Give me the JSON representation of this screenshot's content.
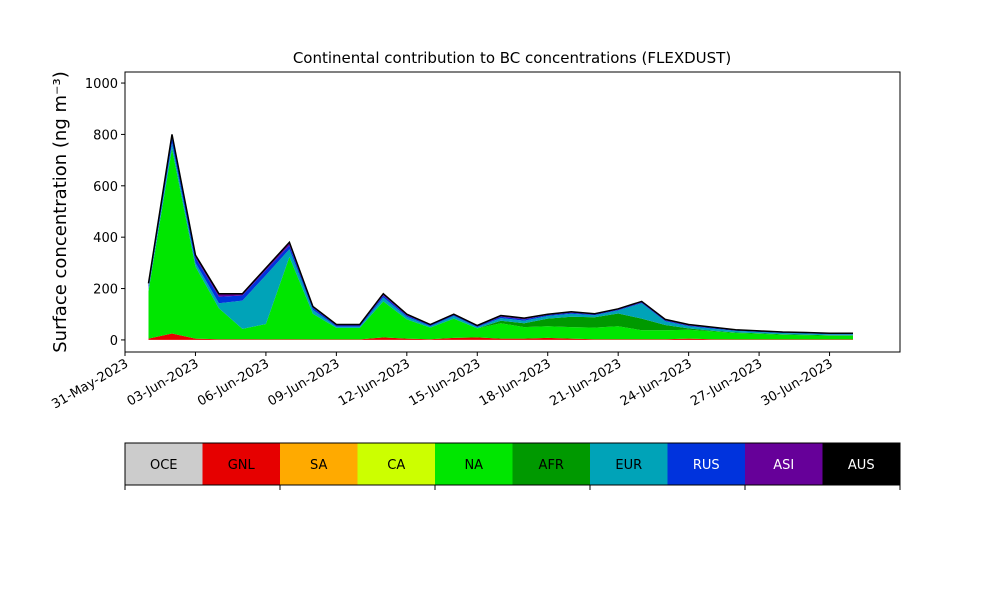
{
  "chart_data": {
    "type": "area",
    "title": "Continental contribution to BC concentrations (FLEXDUST)",
    "y_label": "Surface concentration (ng m⁻³)",
    "stacked": true,
    "x": [
      "2023-06-01",
      "2023-06-02",
      "2023-06-03",
      "2023-06-04",
      "2023-06-05",
      "2023-06-06",
      "2023-06-07",
      "2023-06-08",
      "2023-06-09",
      "2023-06-10",
      "2023-06-11",
      "2023-06-12",
      "2023-06-13",
      "2023-06-14",
      "2023-06-15",
      "2023-06-16",
      "2023-06-17",
      "2023-06-18",
      "2023-06-19",
      "2023-06-20",
      "2023-06-21",
      "2023-06-22",
      "2023-06-23",
      "2023-06-24",
      "2023-06-25",
      "2023-06-26",
      "2023-06-27",
      "2023-06-28",
      "2023-06-29",
      "2023-06-30",
      "2023-07-01"
    ],
    "xlim": [
      "2023-05-31",
      "2023-07-03"
    ],
    "xticks": [
      {
        "value": "2023-05-31",
        "label": "31-May-2023"
      },
      {
        "value": "2023-06-03",
        "label": "03-Jun-2023"
      },
      {
        "value": "2023-06-06",
        "label": "06-Jun-2023"
      },
      {
        "value": "2023-06-09",
        "label": "09-Jun-2023"
      },
      {
        "value": "2023-06-12",
        "label": "12-Jun-2023"
      },
      {
        "value": "2023-06-15",
        "label": "15-Jun-2023"
      },
      {
        "value": "2023-06-18",
        "label": "18-Jun-2023"
      },
      {
        "value": "2023-06-21",
        "label": "21-Jun-2023"
      },
      {
        "value": "2023-06-24",
        "label": "24-Jun-2023"
      },
      {
        "value": "2023-06-27",
        "label": "27-Jun-2023"
      },
      {
        "value": "2023-06-30",
        "label": "30-Jun-2023"
      }
    ],
    "ylim": [
      -47,
      1043
    ],
    "yticks": [
      0,
      200,
      400,
      600,
      800,
      1000
    ],
    "series": [
      {
        "name": "OCE",
        "color": "#cccccc",
        "values": [
          0,
          0,
          0,
          0,
          0,
          0,
          0,
          0,
          0,
          0,
          0,
          0,
          0,
          0,
          0,
          0,
          0,
          0,
          0,
          0,
          0,
          0,
          0,
          0,
          0,
          0,
          0,
          0,
          0,
          0,
          0
        ]
      },
      {
        "name": "GNL",
        "color": "#e60000",
        "values": [
          5,
          25,
          5,
          3,
          3,
          2,
          3,
          2,
          2,
          2,
          10,
          5,
          3,
          8,
          10,
          5,
          5,
          8,
          5,
          3,
          3,
          3,
          3,
          5,
          3,
          2,
          2,
          2,
          2,
          2,
          2
        ]
      },
      {
        "name": "SA",
        "color": "#ffaa00",
        "values": [
          0,
          0,
          0,
          0,
          0,
          0,
          0,
          0,
          0,
          0,
          0,
          0,
          0,
          0,
          0,
          0,
          0,
          0,
          0,
          0,
          0,
          0,
          0,
          0,
          0,
          0,
          0,
          0,
          0,
          0,
          0
        ]
      },
      {
        "name": "CA",
        "color": "#ccff00",
        "values": [
          0,
          0,
          0,
          0,
          0,
          0,
          0,
          0,
          0,
          0,
          0,
          0,
          0,
          0,
          0,
          0,
          0,
          0,
          0,
          0,
          0,
          0,
          0,
          0,
          0,
          0,
          0,
          0,
          0,
          0,
          0
        ]
      },
      {
        "name": "NA",
        "color": "#00e600",
        "values": [
          185,
          720,
          280,
          120,
          40,
          60,
          320,
          100,
          45,
          45,
          140,
          75,
          45,
          75,
          35,
          60,
          45,
          45,
          45,
          45,
          50,
          35,
          35,
          35,
          30,
          25,
          22,
          18,
          16,
          14,
          14
        ]
      },
      {
        "name": "AFR",
        "color": "#009900",
        "values": [
          0,
          0,
          0,
          0,
          0,
          0,
          0,
          0,
          0,
          0,
          0,
          0,
          0,
          0,
          0,
          10,
          15,
          30,
          40,
          40,
          50,
          45,
          20,
          5,
          3,
          2,
          2,
          2,
          2,
          2,
          2
        ]
      },
      {
        "name": "EUR",
        "color": "#00a3b8",
        "values": [
          10,
          20,
          15,
          20,
          110,
          190,
          30,
          15,
          5,
          5,
          15,
          10,
          5,
          10,
          5,
          10,
          10,
          10,
          12,
          8,
          12,
          60,
          15,
          8,
          8,
          6,
          5,
          5,
          5,
          4,
          4
        ]
      },
      {
        "name": "RUS",
        "color": "#0033dd",
        "values": [
          15,
          25,
          20,
          25,
          20,
          20,
          15,
          8,
          4,
          4,
          8,
          5,
          4,
          4,
          3,
          5,
          5,
          4,
          4,
          3,
          3,
          3,
          3,
          3,
          3,
          2,
          2,
          2,
          2,
          2,
          2
        ]
      },
      {
        "name": "ASI",
        "color": "#660099",
        "values": [
          3,
          8,
          8,
          10,
          5,
          5,
          8,
          3,
          2,
          2,
          4,
          3,
          2,
          2,
          2,
          3,
          3,
          2,
          3,
          2,
          2,
          3,
          3,
          3,
          2,
          2,
          1,
          1,
          1,
          1,
          1
        ]
      },
      {
        "name": "AUS",
        "color": "#000000",
        "values": [
          2,
          2,
          2,
          2,
          2,
          3,
          4,
          2,
          2,
          2,
          3,
          2,
          1,
          1,
          1,
          2,
          2,
          1,
          1,
          1,
          1,
          1,
          1,
          1,
          1,
          1,
          1,
          1,
          1,
          1,
          1
        ]
      }
    ]
  }
}
